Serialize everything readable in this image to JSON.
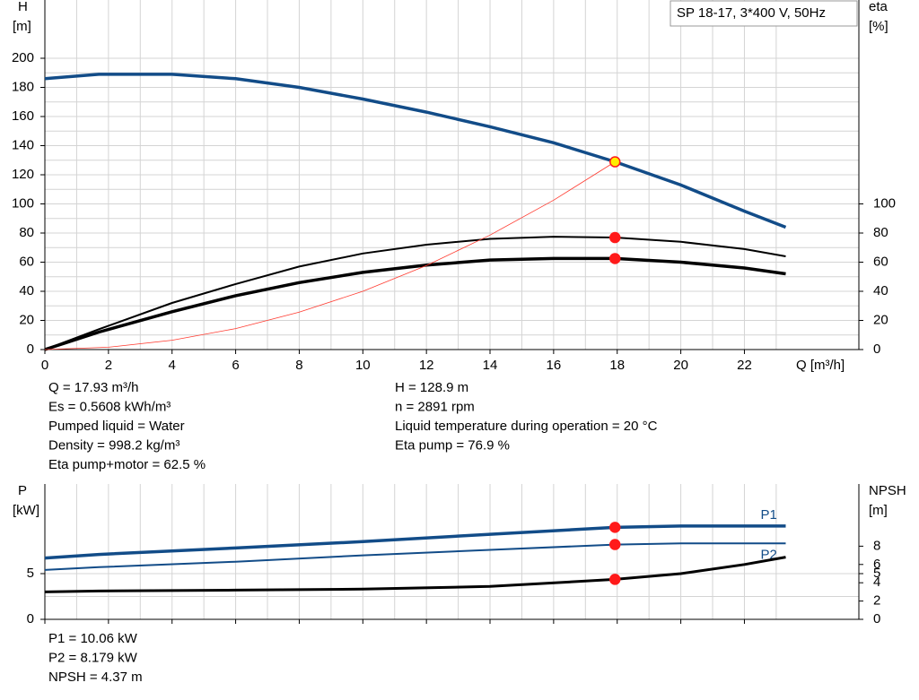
{
  "chart_data": [
    {
      "type": "line",
      "y_label": "H",
      "y_unit": "[m]",
      "y2_label": "eta",
      "y2_unit": "[%]",
      "x_label": "Q [m³/h]",
      "legend_box": "SP 18-17, 3*400 V, 50Hz",
      "xlim": [
        0,
        25.6
      ],
      "ylim": [
        0,
        240
      ],
      "y2lim": [
        0,
        240
      ],
      "xticks": [
        0,
        2,
        4,
        6,
        8,
        10,
        12,
        14,
        16,
        18,
        20,
        22
      ],
      "yticks": [
        0,
        20,
        40,
        60,
        80,
        100,
        120,
        140,
        160,
        180,
        200
      ],
      "y2ticks": [
        0,
        20,
        40,
        60,
        80,
        100
      ],
      "grid": true,
      "series": [
        {
          "color": "#124c88",
          "axis": "y",
          "x": [
            0,
            1.7,
            4,
            6,
            8,
            10,
            12,
            14,
            16,
            17.93,
            20,
            22,
            23.3
          ],
          "values": [
            186,
            189,
            189,
            186,
            180,
            172,
            163,
            153,
            142,
            128.9,
            113,
            95,
            84
          ]
        },
        {
          "color": "#000000",
          "axis": "y2",
          "x": [
            0,
            1.7,
            4,
            6,
            8,
            10,
            12,
            14,
            16,
            17.93,
            20,
            22,
            23.3
          ],
          "values": [
            0,
            14,
            32,
            45,
            57,
            66,
            72,
            76,
            77.5,
            76.9,
            74,
            69,
            64
          ]
        },
        {
          "color": "#000000",
          "axis": "y2",
          "x": [
            0,
            1.7,
            4,
            6,
            8,
            10,
            12,
            14,
            16,
            17.93,
            20,
            22,
            23.3
          ],
          "values": [
            0,
            12,
            26,
            37,
            46,
            53,
            58,
            61.5,
            62.5,
            62.5,
            60,
            56,
            52
          ]
        },
        {
          "color": "#ff3b30",
          "axis": "y",
          "x": [
            0,
            2,
            4,
            6,
            8,
            10,
            12,
            14,
            16,
            17.93
          ],
          "values": [
            0,
            1.6,
            6.4,
            14.4,
            25.7,
            40,
            57.7,
            78.6,
            102.6,
            128.9
          ]
        }
      ],
      "markers": [
        {
          "x": 17.93,
          "y": 128.9,
          "axis": "y",
          "color": "#ffee00"
        },
        {
          "x": 17.93,
          "y": 76.9,
          "axis": "y2",
          "color": "#ff1a1a"
        },
        {
          "x": 17.93,
          "y": 62.5,
          "axis": "y2",
          "color": "#ff1a1a"
        }
      ],
      "notes_left": [
        "Q = 17.93 m³/h",
        "Es = 0.5608 kWh/m³",
        "Pumped liquid = Water",
        "Density = 998.2 kg/m³",
        "Eta pump+motor = 62.5 %"
      ],
      "notes_right": [
        "H = 128.9 m",
        "n = 2891 rpm",
        "Liquid temperature during operation = 20 °C",
        "Eta pump = 76.9 %"
      ]
    },
    {
      "type": "line",
      "y_label": "P",
      "y_unit": "[kW]",
      "y2_label": "NPSH",
      "y2_unit": "[m]",
      "xlim": [
        0,
        25.6
      ],
      "ylim": [
        0,
        14.8
      ],
      "y2lim": [
        0,
        14.8
      ],
      "xticks": [
        0,
        2,
        4,
        6,
        8,
        10,
        12,
        14,
        16,
        18,
        20,
        22
      ],
      "yticks": [
        0,
        5
      ],
      "y2ticks": [
        0,
        2,
        4,
        5,
        6,
        8
      ],
      "grid": true,
      "series": [
        {
          "name": "P1",
          "color": "#124c88",
          "axis": "y",
          "x": [
            0,
            1.7,
            6,
            10,
            14,
            17.93,
            20,
            23.3
          ],
          "values": [
            6.7,
            7.1,
            7.8,
            8.5,
            9.3,
            10.06,
            10.2,
            10.2
          ]
        },
        {
          "name": "P2",
          "color": "#124c88",
          "axis": "y",
          "x": [
            0,
            1.7,
            6,
            10,
            14,
            17.93,
            20,
            23.3
          ],
          "values": [
            5.4,
            5.7,
            6.3,
            7,
            7.6,
            8.179,
            8.3,
            8.3
          ]
        },
        {
          "color": "#000000",
          "axis": "y2",
          "x": [
            0,
            1.7,
            6,
            10,
            14,
            17.93,
            20,
            22,
            23.3
          ],
          "values": [
            3,
            3.1,
            3.2,
            3.3,
            3.6,
            4.37,
            5.0,
            6.0,
            6.8
          ]
        }
      ],
      "markers": [
        {
          "x": 17.93,
          "y": 10.06,
          "axis": "y",
          "color": "#ff1a1a"
        },
        {
          "x": 17.93,
          "y": 8.179,
          "axis": "y",
          "color": "#ff1a1a"
        },
        {
          "x": 17.93,
          "y": 4.37,
          "axis": "y2",
          "color": "#ff1a1a"
        }
      ],
      "notes_left": [
        "P1 = 10.06 kW",
        "P2 = 8.179 kW",
        "NPSH = 4.37 m"
      ]
    }
  ]
}
